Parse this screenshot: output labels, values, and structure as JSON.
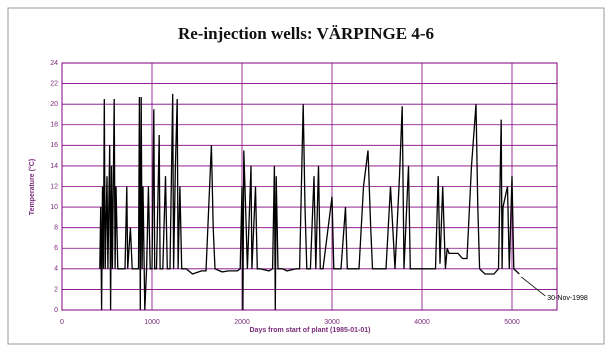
{
  "chart_data": {
    "type": "line",
    "title": "Re-injection wells: VÄRPINGE 4-6",
    "x_label": "Days from start of plant (1985-01-01)",
    "y_label": "Temperature (°C)",
    "x": [
      420,
      430,
      440,
      450,
      460,
      470,
      480,
      500,
      510,
      530,
      540,
      550,
      560,
      580,
      590,
      600,
      620,
      700,
      720,
      730,
      760,
      780,
      800,
      850,
      860,
      870,
      880,
      890,
      900,
      920,
      940,
      960,
      980,
      1000,
      1020,
      1030,
      1050,
      1080,
      1090,
      1120,
      1150,
      1170,
      1200,
      1230,
      1240,
      1260,
      1280,
      1290,
      1310,
      1330,
      1380,
      1450,
      1550,
      1600,
      1650,
      1660,
      1680,
      1700,
      1780,
      1850,
      1950,
      1980,
      2000,
      2010,
      2020,
      2040,
      2060,
      2100,
      2110,
      2150,
      2170,
      2200,
      2300,
      2340,
      2360,
      2370,
      2380,
      2400,
      2450,
      2500,
      2600,
      2640,
      2660,
      2680,
      2700,
      2720,
      2760,
      2800,
      2820,
      2850,
      2870,
      2900,
      3000,
      3020,
      3100,
      3150,
      3170,
      3200,
      3300,
      3350,
      3400,
      3430,
      3450,
      3500,
      3560,
      3600,
      3650,
      3700,
      3750,
      3780,
      3800,
      3850,
      3870,
      3900,
      4000,
      4100,
      4150,
      4180,
      4200,
      4230,
      4260,
      4280,
      4300,
      4400,
      4450,
      4500,
      4550,
      4600,
      4620,
      4640,
      4700,
      4800,
      4850,
      4880,
      4890,
      4900,
      4950,
      4970,
      5000,
      5020,
      5081
    ],
    "values": [
      4,
      10,
      0,
      12,
      4,
      20.5,
      4,
      13,
      4,
      16,
      0,
      14,
      4,
      20.5,
      4,
      12,
      4,
      4,
      12,
      4,
      8,
      4,
      4,
      4,
      20.7,
      0,
      20.7,
      4,
      12,
      0,
      4,
      12,
      4,
      4,
      19.5,
      4,
      4,
      17,
      4,
      4,
      13,
      4,
      4,
      21,
      4,
      14,
      20.5,
      4,
      12,
      4,
      4,
      3.5,
      3.8,
      3.8,
      14,
      16,
      8,
      4,
      3.7,
      3.8,
      3.8,
      4,
      12,
      0,
      15.5,
      10,
      4,
      14,
      4,
      12,
      4,
      4,
      3.8,
      4,
      14,
      0,
      13,
      4,
      4,
      3.8,
      4,
      4,
      12,
      20,
      10,
      4,
      4,
      13,
      4,
      14,
      4,
      4,
      11,
      4,
      4,
      10,
      4,
      4,
      4,
      12,
      15.5,
      8,
      4,
      4,
      4,
      4,
      12,
      4,
      13,
      19.8,
      4,
      14,
      4,
      4,
      4,
      4,
      4,
      13,
      4.5,
      12,
      4,
      6,
      5.5,
      5.5,
      5,
      5,
      14,
      20,
      10,
      4,
      3.5,
      3.5,
      4,
      18.5,
      4,
      10,
      12,
      4,
      13,
      4,
      3.5
    ],
    "color": "#000000",
    "grid_color": "#800080",
    "grid": true,
    "xlim": [
      0,
      5500
    ],
    "xticks": [
      0,
      1000,
      2000,
      3000,
      4000,
      5000
    ],
    "ylim": [
      0,
      24
    ],
    "yticks": [
      0,
      2,
      4,
      6,
      8,
      10,
      12,
      14,
      16,
      18,
      20,
      22,
      24
    ],
    "annotation": {
      "text": "30-Nov-1998",
      "x": 5081,
      "y": 3.5
    }
  }
}
